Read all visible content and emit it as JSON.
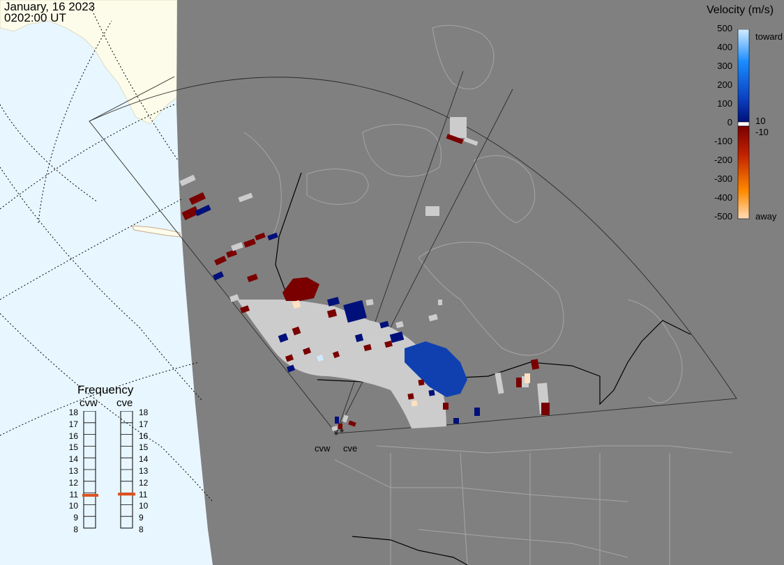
{
  "header": {
    "date": "January, 16 2023",
    "time": "0202:00 UT"
  },
  "legend": {
    "title": "Velocity (m/s)",
    "ticks": [
      "500",
      "400",
      "300",
      "200",
      "100",
      "0",
      "-100",
      "-200",
      "-300",
      "-400",
      "-500"
    ],
    "toward_label": "toward",
    "away_label": "away",
    "pos_label": "10",
    "neg_label": "-10",
    "colors": {
      "toward_light": "#cfe9ff",
      "toward_mid": "#1a8cff",
      "toward_dark": "#00107a",
      "away_dark": "#7a0000",
      "away_mid": "#ff8a00",
      "away_light": "#ffe0c0"
    }
  },
  "frequency": {
    "title": "Frequency",
    "radars": [
      "cvw",
      "cve"
    ],
    "scale": [
      "18",
      "17",
      "16",
      "15",
      "14",
      "13",
      "12",
      "11",
      "10",
      "9",
      "8"
    ],
    "cvw_value_mhz": 10.8,
    "cve_value_mhz": 10.9,
    "marker_color": "#e0501e"
  },
  "stations": {
    "west": "cvw",
    "east": "cve"
  },
  "map_colors": {
    "ocean": "#e8f6ff",
    "land_lit": "#fdfcea",
    "night": "#808080",
    "ground_scatter": "#cccccc",
    "borders": "#000000"
  }
}
